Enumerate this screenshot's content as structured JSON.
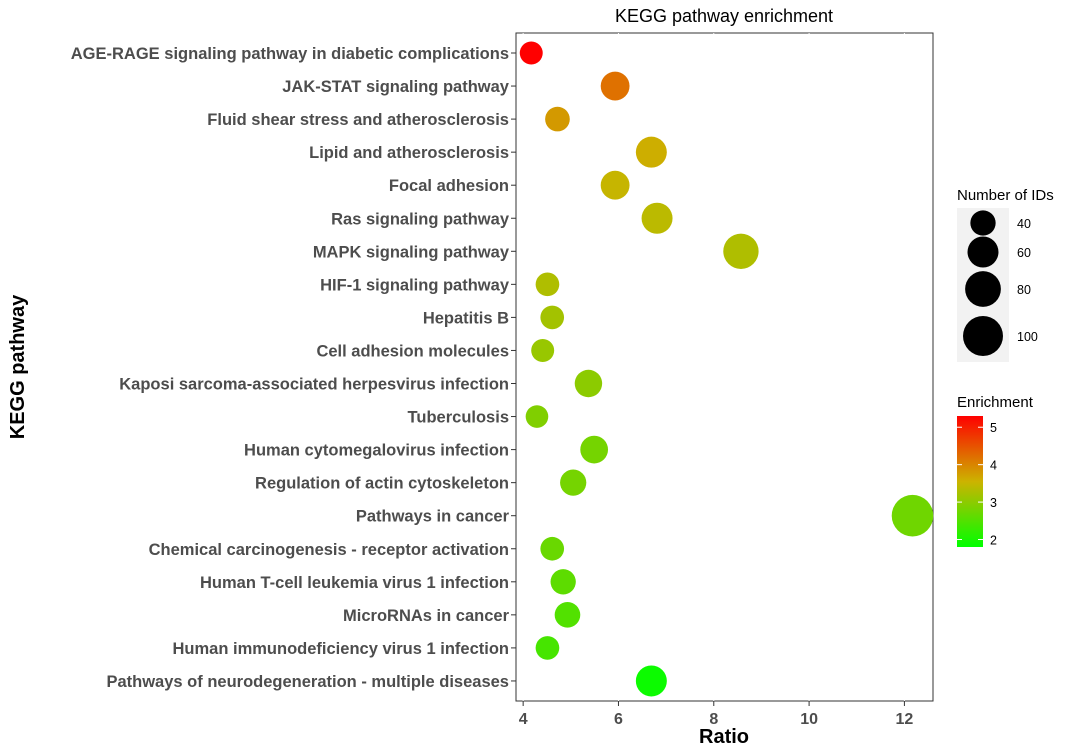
{
  "chart_data": {
    "type": "scatter",
    "title": "KEGG pathway enrichment",
    "xlabel": "Ratio",
    "ylabel": "KEGG pathway",
    "xlim": [
      3.85,
      12.6
    ],
    "xticks": [
      4,
      6,
      8,
      10,
      12
    ],
    "grid": true,
    "points": [
      {
        "pathway": "AGE-RAGE signaling pathway in diabetic complications",
        "ratio": 4.17,
        "count": 33,
        "enrichment": 5.3
      },
      {
        "pathway": "JAK-STAT signaling pathway",
        "ratio": 5.93,
        "count": 52,
        "enrichment": 4.2
      },
      {
        "pathway": "Fluid shear stress and atherosclerosis",
        "ratio": 4.72,
        "count": 38,
        "enrichment": 3.8
      },
      {
        "pathway": "Lipid and atherosclerosis",
        "ratio": 6.69,
        "count": 60,
        "enrichment": 3.6
      },
      {
        "pathway": "Focal adhesion",
        "ratio": 5.93,
        "count": 52,
        "enrichment": 3.5
      },
      {
        "pathway": "Ras signaling pathway",
        "ratio": 6.81,
        "count": 60,
        "enrichment": 3.4
      },
      {
        "pathway": "MAPK signaling pathway",
        "ratio": 8.57,
        "count": 78,
        "enrichment": 3.3
      },
      {
        "pathway": "HIF-1 signaling pathway",
        "ratio": 4.51,
        "count": 35,
        "enrichment": 3.3
      },
      {
        "pathway": "Hepatitis B",
        "ratio": 4.61,
        "count": 35,
        "enrichment": 3.2
      },
      {
        "pathway": "Cell adhesion molecules",
        "ratio": 4.41,
        "count": 33,
        "enrichment": 3.1
      },
      {
        "pathway": "Kaposi sarcoma-associated herpesvirus infection",
        "ratio": 5.37,
        "count": 47,
        "enrichment": 3.0
      },
      {
        "pathway": "Tuberculosis",
        "ratio": 4.29,
        "count": 32,
        "enrichment": 2.9
      },
      {
        "pathway": "Human cytomegalovirus infection",
        "ratio": 5.49,
        "count": 48,
        "enrichment": 2.8
      },
      {
        "pathway": "Regulation of actin cytoskeleton",
        "ratio": 5.05,
        "count": 43,
        "enrichment": 2.8
      },
      {
        "pathway": "Pathways in cancer",
        "ratio": 12.17,
        "count": 108,
        "enrichment": 2.75
      },
      {
        "pathway": "Chemical carcinogenesis - receptor activation",
        "ratio": 4.61,
        "count": 35,
        "enrichment": 2.7
      },
      {
        "pathway": "Human T-cell leukemia virus 1 infection",
        "ratio": 4.84,
        "count": 40,
        "enrichment": 2.6
      },
      {
        "pathway": "MicroRNAs in cancer",
        "ratio": 4.93,
        "count": 41,
        "enrichment": 2.5
      },
      {
        "pathway": "Human immunodeficiency virus 1 infection",
        "ratio": 4.51,
        "count": 35,
        "enrichment": 2.4
      },
      {
        "pathway": "Pathways of neurodegeneration - multiple diseases",
        "ratio": 6.69,
        "count": 60,
        "enrichment": 1.9
      }
    ],
    "size_legend": {
      "title": "Number of IDs",
      "breaks": [
        40,
        60,
        80,
        100
      ],
      "labels": [
        "40",
        "60",
        "80",
        "100"
      ]
    },
    "color_legend": {
      "title": "Enrichment",
      "min": 1.8,
      "max": 5.3,
      "breaks": [
        2,
        3,
        4,
        5
      ],
      "labels": [
        "2",
        "3",
        "4",
        "5"
      ],
      "colors": {
        "low": "#00ff00",
        "mid": "#ccb300",
        "high": "#ff0000"
      }
    }
  }
}
